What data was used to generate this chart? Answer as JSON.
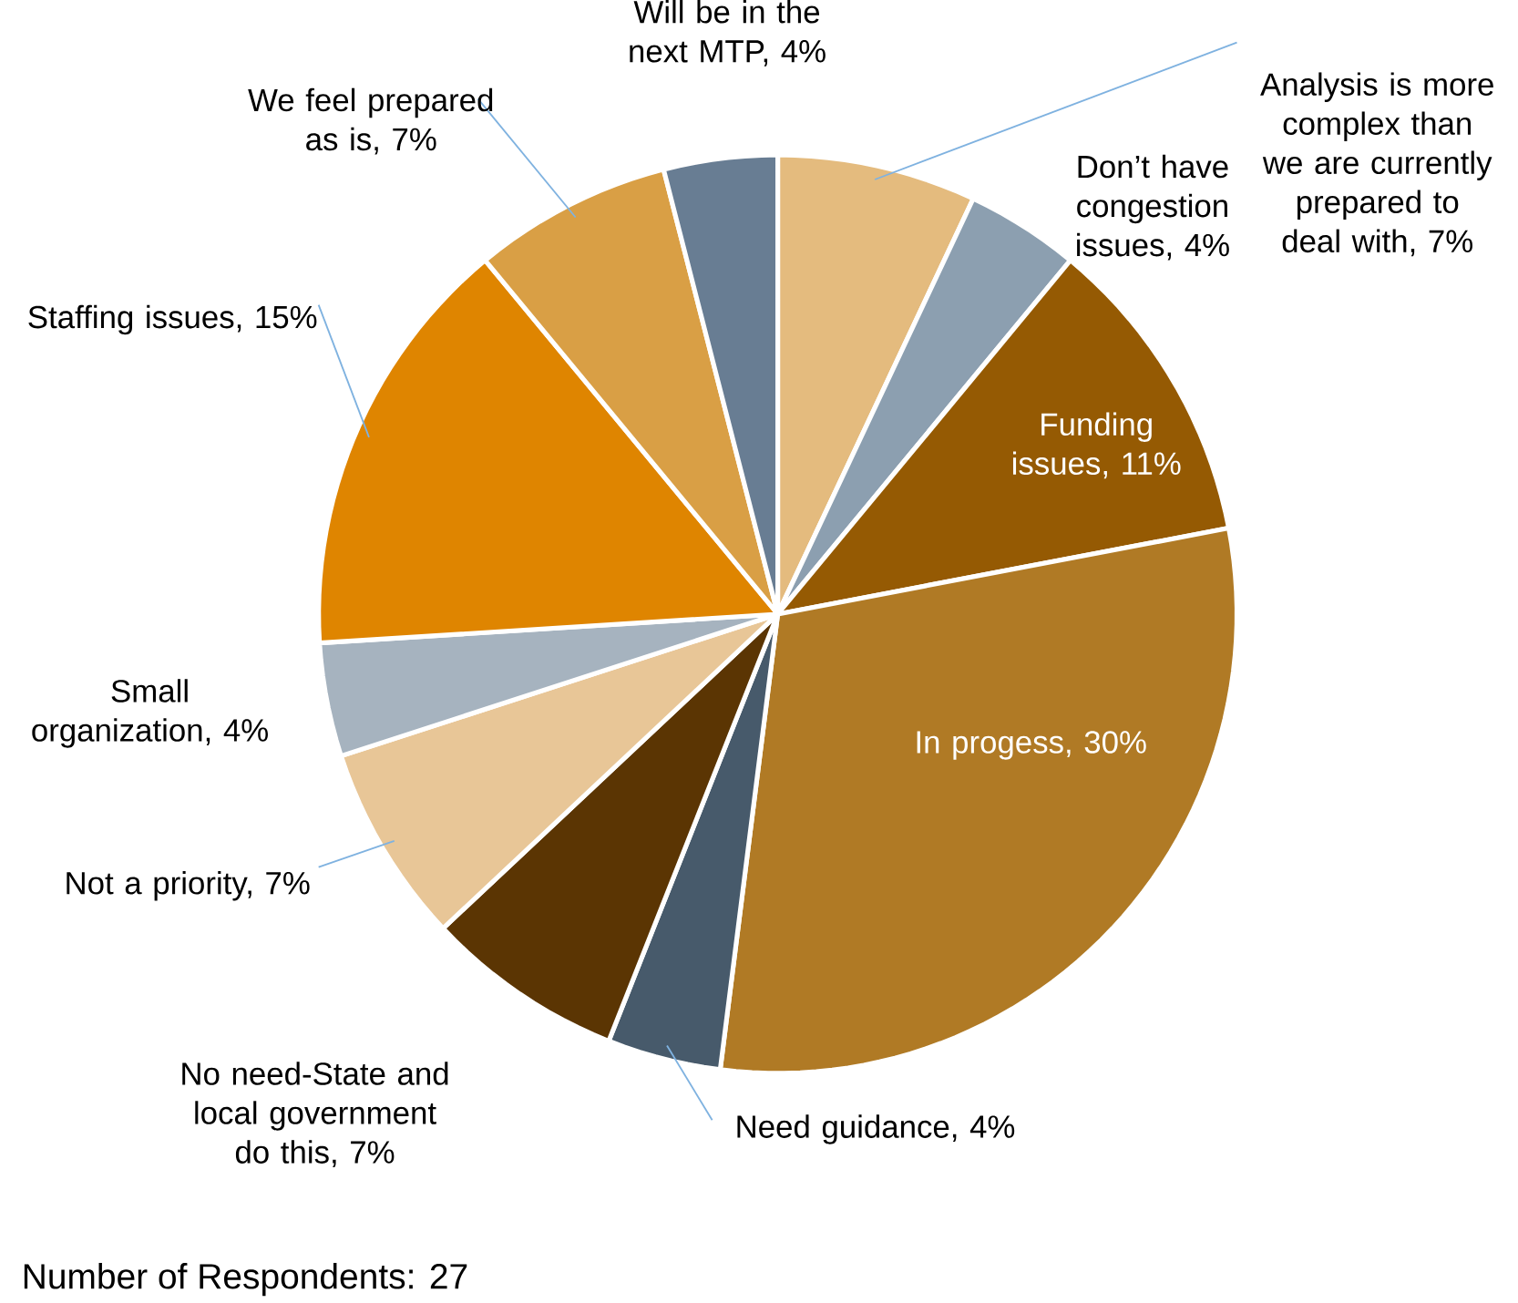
{
  "chart_data": {
    "type": "pie",
    "categories": [
      "Analysis is more complex than we are currently prepared to deal with, 7%",
      "Don’t have congestion issues, 4%",
      "Funding issues, 11%",
      "In progess, 30%",
      "Need guidance, 4%",
      "No need-State and local government do this, 7%",
      "Not a priority, 7%",
      "Small organization, 4%",
      "Staffing issues, 15%",
      "We feel prepared as is, 7%",
      "Will be in the next MTP, 4%"
    ],
    "values": [
      7,
      4,
      11,
      30,
      4,
      7,
      7,
      4,
      15,
      7,
      4
    ],
    "colors": [
      "#e4bb7e",
      "#8c9fb0",
      "#955a03",
      "#b07a25",
      "#475a6b",
      "#5b3503",
      "#e8c697",
      "#a6b3bf",
      "#df8500",
      "#d99f45",
      "#687d93"
    ],
    "annotations": [
      "Number of Respondents:  27"
    ]
  }
}
